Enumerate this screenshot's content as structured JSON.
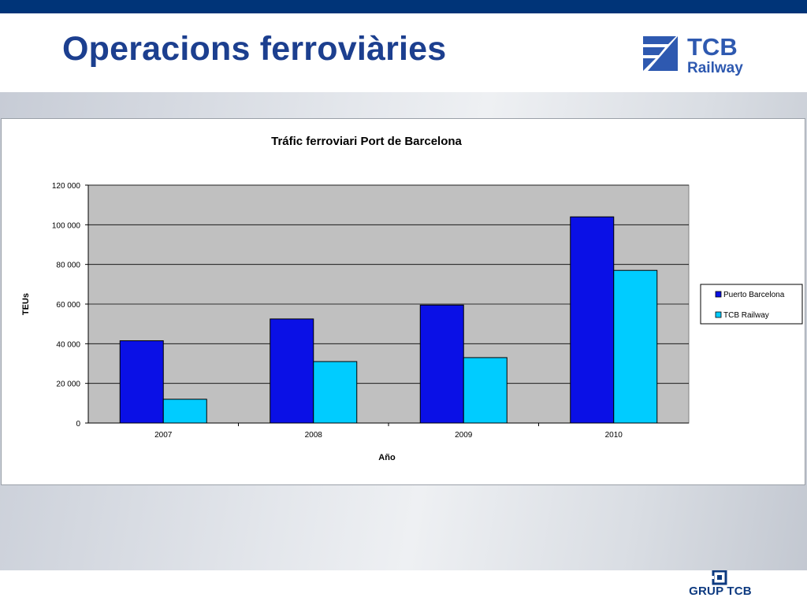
{
  "slide": {
    "title": "Operacions ferroviàries",
    "logo_text": "TCB Railway",
    "footer_logo_text": "GRUP TCB"
  },
  "colors": {
    "top_bar": "#003478",
    "title": "#1c3f8f",
    "plot_bg": "#c0c0c0",
    "series_1": "#0a10e6",
    "series_2": "#00ccff"
  },
  "chart_data": {
    "type": "bar",
    "title": "Tráfic ferroviari Port de Barcelona",
    "xlabel": "Año",
    "ylabel": "TEUs",
    "categories": [
      "2007",
      "2008",
      "2009",
      "2010"
    ],
    "series": [
      {
        "name": "Puerto Barcelona",
        "values": [
          41500,
          52500,
          59500,
          104000
        ]
      },
      {
        "name": "TCB Railway",
        "values": [
          12000,
          31000,
          33000,
          77000
        ]
      }
    ],
    "ylim": [
      0,
      120000
    ],
    "yticks": [
      0,
      20000,
      40000,
      60000,
      80000,
      100000,
      120000
    ],
    "ytick_labels": [
      "0",
      "20 000",
      "40 000",
      "60 000",
      "80 000",
      "100 000",
      "120 000"
    ],
    "grid": true,
    "legend": "right"
  }
}
